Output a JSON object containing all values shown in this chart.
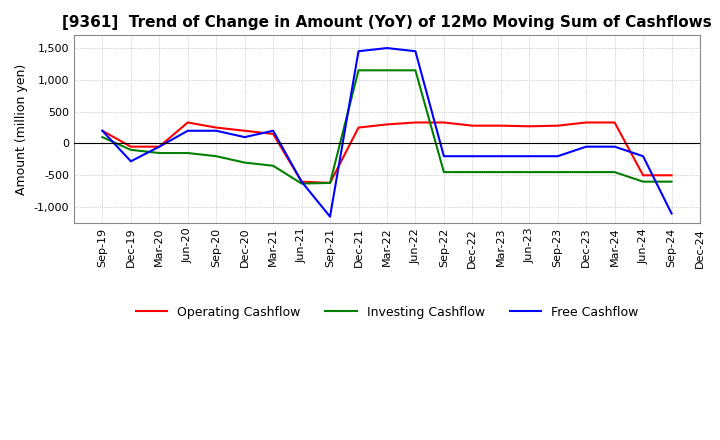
{
  "title": "[9361]  Trend of Change in Amount (YoY) of 12Mo Moving Sum of Cashflows",
  "ylabel": "Amount (million yen)",
  "ylim": [
    -1250,
    1700
  ],
  "yticks": [
    -1000,
    -500,
    0,
    500,
    1000,
    1500
  ],
  "x_labels": [
    "Sep-19",
    "Dec-19",
    "Mar-20",
    "Jun-20",
    "Sep-20",
    "Dec-20",
    "Mar-21",
    "Jun-21",
    "Sep-21",
    "Dec-21",
    "Mar-22",
    "Jun-22",
    "Sep-22",
    "Dec-22",
    "Mar-23",
    "Jun-23",
    "Sep-23",
    "Dec-23",
    "Mar-24",
    "Jun-24",
    "Sep-24",
    "Dec-24"
  ],
  "operating": [
    200,
    -50,
    -50,
    330,
    250,
    200,
    150,
    -600,
    -620,
    250,
    300,
    330,
    330,
    280,
    280,
    270,
    280,
    330,
    330,
    -500,
    -500,
    null
  ],
  "investing": [
    100,
    -100,
    -150,
    -150,
    -200,
    -300,
    -350,
    -630,
    -620,
    1150,
    1150,
    1150,
    -450,
    -450,
    -450,
    -450,
    -450,
    -450,
    -450,
    -600,
    -600,
    null
  ],
  "free": [
    200,
    -280,
    -50,
    200,
    200,
    100,
    200,
    -600,
    -1150,
    1450,
    1500,
    1450,
    -200,
    -200,
    -200,
    -200,
    -200,
    -50,
    -50,
    -200,
    -1100,
    null
  ],
  "operating_color": "#ff0000",
  "investing_color": "#008000",
  "free_color": "#0000ff",
  "background_color": "#ffffff",
  "grid_color": "#aaaaaa",
  "title_fontsize": 11,
  "label_fontsize": 9,
  "tick_fontsize": 8,
  "legend_fontsize": 9
}
